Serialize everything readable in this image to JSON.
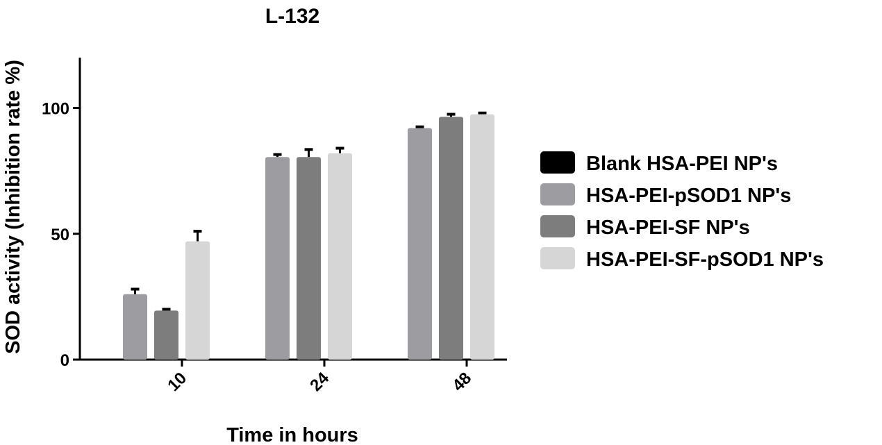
{
  "chart_data": {
    "type": "bar",
    "title": "L-132",
    "xlabel": "Time in hours",
    "ylabel": "SOD activity (Inhibition rate %)",
    "categories": [
      "10",
      "24",
      "48"
    ],
    "ylim": [
      0,
      120
    ],
    "yticks": [
      0,
      50,
      100
    ],
    "grid": false,
    "legend_position": "right",
    "series": [
      {
        "name": "Blank HSA-PEI NP's",
        "color": "#000000",
        "values": [
          0,
          0,
          0
        ],
        "errors": [
          0,
          0,
          0
        ]
      },
      {
        "name": "HSA-PEI-pSOD1 NP's",
        "color": "#9c9ca1",
        "values": [
          26,
          80.5,
          92
        ],
        "errors": [
          2,
          1,
          0.5
        ]
      },
      {
        "name": "HSA-PEI-SF NP's",
        "color": "#7d7d7d",
        "values": [
          19.5,
          80.5,
          96.5
        ],
        "errors": [
          0.5,
          3,
          1
        ]
      },
      {
        "name": "HSA-PEI-SF-pSOD1 NP's",
        "color": "#d6d6d6",
        "values": [
          47,
          82,
          97.5
        ],
        "errors": [
          4,
          2,
          0.5
        ]
      }
    ]
  }
}
